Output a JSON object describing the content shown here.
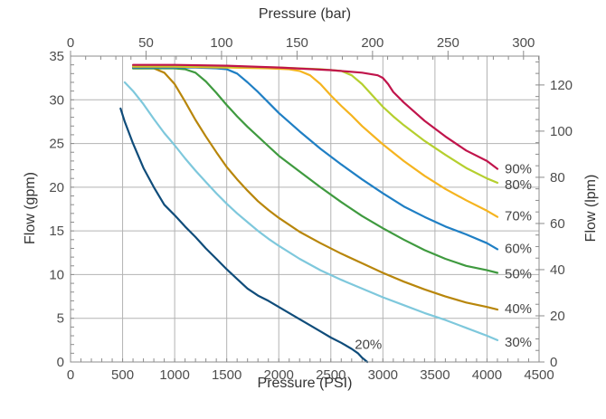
{
  "chart_data": {
    "type": "line",
    "xlabel": "Pressure (PSI)",
    "ylabel": "Flow (gpm)",
    "x2label": "Pressure (bar)",
    "y2label": "Flow (lpm)",
    "xlim": [
      0,
      4500
    ],
    "ylim": [
      0,
      35
    ],
    "x2lim": [
      0,
      310.3
    ],
    "y2lim": [
      0,
      132.5
    ],
    "grid": true,
    "x_ticks": [
      "0",
      "500",
      "1000",
      "1500",
      "2000",
      "2500",
      "3000",
      "3500",
      "4000",
      "4500"
    ],
    "y_ticks": [
      "0",
      "5",
      "10",
      "15",
      "20",
      "25",
      "30",
      "35"
    ],
    "x2_ticks": [
      "0",
      "50",
      "100",
      "150",
      "200",
      "250",
      "300"
    ],
    "y2_ticks": [
      "0",
      "20",
      "40",
      "60",
      "80",
      "100",
      "120"
    ],
    "series": [
      {
        "name": "20%",
        "color": "#0f4c7a",
        "label_at": [
          2730,
          2.0
        ],
        "x": [
          480,
          520,
          600,
          700,
          800,
          900,
          1000,
          1100,
          1200,
          1300,
          1400,
          1500,
          1600,
          1700,
          1750,
          1800,
          1900,
          2000,
          2100,
          2200,
          2300,
          2400,
          2500,
          2600,
          2700,
          2760,
          2800,
          2850
        ],
        "y": [
          29.0,
          27.5,
          25.0,
          22.2,
          20.0,
          18.0,
          16.8,
          15.5,
          14.3,
          13.0,
          11.8,
          10.6,
          9.5,
          8.4,
          8.0,
          7.6,
          7.0,
          6.3,
          5.6,
          4.9,
          4.2,
          3.5,
          2.8,
          2.2,
          1.5,
          1.0,
          0.5,
          0.0
        ]
      },
      {
        "name": "30%",
        "color": "#7ec8dc",
        "label_at": [
          4170,
          2.3
        ],
        "x": [
          520,
          600,
          700,
          800,
          900,
          1000,
          1100,
          1200,
          1300,
          1400,
          1500,
          1600,
          1700,
          1800,
          1900,
          2000,
          2200,
          2400,
          2600,
          2800,
          3000,
          3200,
          3400,
          3600,
          3800,
          4000,
          4100
        ],
        "y": [
          32.0,
          31.0,
          29.5,
          27.8,
          26.2,
          24.8,
          23.3,
          21.9,
          20.6,
          19.3,
          18.1,
          17.0,
          16.0,
          15.0,
          14.1,
          13.3,
          11.8,
          10.5,
          9.4,
          8.4,
          7.4,
          6.5,
          5.6,
          4.8,
          3.9,
          3.0,
          2.5
        ]
      },
      {
        "name": "40%",
        "color": "#b8860b",
        "label_at": [
          4170,
          6.1
        ],
        "x": [
          600,
          800,
          900,
          1000,
          1100,
          1200,
          1300,
          1400,
          1500,
          1600,
          1700,
          1800,
          1900,
          2000,
          2200,
          2400,
          2600,
          2800,
          3000,
          3200,
          3400,
          3600,
          3800,
          4000,
          4100
        ],
        "y": [
          33.6,
          33.6,
          33.1,
          31.8,
          29.8,
          27.7,
          25.8,
          24.0,
          22.3,
          20.9,
          19.6,
          18.4,
          17.4,
          16.5,
          14.9,
          13.6,
          12.4,
          11.3,
          10.2,
          9.2,
          8.3,
          7.5,
          6.8,
          6.3,
          6.0
        ]
      },
      {
        "name": "50%",
        "color": "#3f9a3f",
        "label_at": [
          4170,
          10.1
        ],
        "x": [
          600,
          900,
          1000,
          1100,
          1200,
          1300,
          1400,
          1500,
          1600,
          1700,
          1800,
          1900,
          2000,
          2200,
          2400,
          2600,
          2800,
          3000,
          3200,
          3400,
          3600,
          3800,
          4000,
          4100
        ],
        "y": [
          33.6,
          33.6,
          33.6,
          33.5,
          33.1,
          32.1,
          30.8,
          29.4,
          28.1,
          26.9,
          25.8,
          24.7,
          23.6,
          21.8,
          20.0,
          18.3,
          16.7,
          15.3,
          14.0,
          12.8,
          11.8,
          11.0,
          10.5,
          10.2
        ]
      },
      {
        "name": "60%",
        "color": "#1f7fc4",
        "label_at": [
          4170,
          13.0
        ],
        "x": [
          600,
          1000,
          1200,
          1400,
          1500,
          1600,
          1700,
          1800,
          1900,
          2000,
          2200,
          2400,
          2600,
          2800,
          3000,
          3200,
          3400,
          3600,
          3800,
          4000,
          4100
        ],
        "y": [
          33.7,
          33.7,
          33.7,
          33.6,
          33.5,
          33.0,
          32.0,
          30.9,
          29.7,
          28.5,
          26.4,
          24.4,
          22.6,
          20.9,
          19.3,
          17.8,
          16.6,
          15.5,
          14.6,
          13.6,
          12.9
        ]
      },
      {
        "name": "70%",
        "color": "#f5b41f",
        "label_at": [
          4170,
          16.7
        ],
        "x": [
          600,
          1000,
          1500,
          1900,
          2100,
          2200,
          2300,
          2400,
          2500,
          2600,
          2700,
          2800,
          3000,
          3200,
          3400,
          3600,
          3800,
          4000,
          4100
        ],
        "y": [
          33.8,
          33.8,
          33.7,
          33.6,
          33.5,
          33.3,
          32.8,
          31.8,
          30.5,
          29.3,
          28.2,
          27.0,
          24.9,
          23.0,
          21.3,
          19.8,
          18.5,
          17.3,
          16.6
        ]
      },
      {
        "name": "80%",
        "color": "#b5cf2e",
        "label_at": [
          4170,
          20.3
        ],
        "x": [
          600,
          1000,
          1500,
          2000,
          2400,
          2600,
          2700,
          2800,
          2900,
          3000,
          3100,
          3200,
          3400,
          3600,
          3800,
          4000,
          4100
        ],
        "y": [
          33.9,
          33.9,
          33.8,
          33.7,
          33.5,
          33.3,
          32.8,
          31.8,
          30.5,
          29.2,
          28.1,
          27.1,
          25.3,
          23.7,
          22.2,
          21.0,
          20.5
        ]
      },
      {
        "name": "90%",
        "color": "#c0144b",
        "label_at": [
          4170,
          22.1
        ],
        "x": [
          600,
          1000,
          1500,
          2000,
          2500,
          2800,
          2950,
          3000,
          3050,
          3100,
          3200,
          3400,
          3600,
          3800,
          4000,
          4100
        ],
        "y": [
          34.0,
          34.0,
          33.9,
          33.7,
          33.4,
          33.1,
          32.8,
          32.5,
          31.8,
          30.9,
          29.7,
          27.6,
          25.8,
          24.2,
          23.0,
          22.1
        ]
      }
    ]
  }
}
